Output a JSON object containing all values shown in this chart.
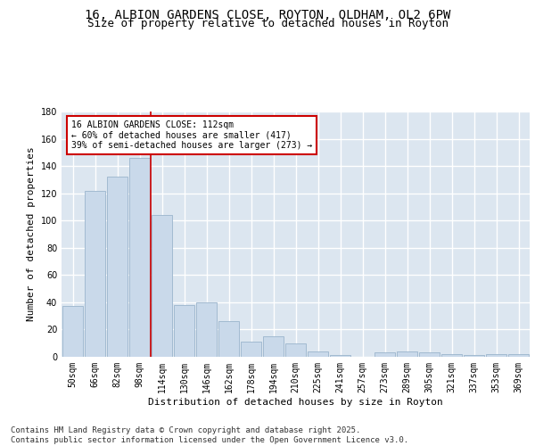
{
  "title_line1": "16, ALBION GARDENS CLOSE, ROYTON, OLDHAM, OL2 6PW",
  "title_line2": "Size of property relative to detached houses in Royton",
  "xlabel": "Distribution of detached houses by size in Royton",
  "ylabel": "Number of detached properties",
  "bar_color": "#c9d9ea",
  "bar_edgecolor": "#9ab4cc",
  "background_color": "#dce6f0",
  "grid_color": "#ffffff",
  "categories": [
    "50sqm",
    "66sqm",
    "82sqm",
    "98sqm",
    "114sqm",
    "130sqm",
    "146sqm",
    "162sqm",
    "178sqm",
    "194sqm",
    "210sqm",
    "225sqm",
    "241sqm",
    "257sqm",
    "273sqm",
    "289sqm",
    "305sqm",
    "321sqm",
    "337sqm",
    "353sqm",
    "369sqm"
  ],
  "values": [
    37,
    122,
    132,
    146,
    104,
    38,
    40,
    26,
    11,
    15,
    10,
    4,
    1,
    0,
    3,
    4,
    3,
    2,
    1,
    2,
    2
  ],
  "vline_x": 3.5,
  "annotation_line1": "16 ALBION GARDENS CLOSE: 112sqm",
  "annotation_line2": "← 60% of detached houses are smaller (417)",
  "annotation_line3": "39% of semi-detached houses are larger (273) →",
  "annotation_box_color": "#ffffff",
  "annotation_box_edgecolor": "#cc0000",
  "vline_color": "#cc0000",
  "ylim": [
    0,
    180
  ],
  "yticks": [
    0,
    20,
    40,
    60,
    80,
    100,
    120,
    140,
    160,
    180
  ],
  "footnote": "Contains HM Land Registry data © Crown copyright and database right 2025.\nContains public sector information licensed under the Open Government Licence v3.0.",
  "title_fontsize": 10,
  "subtitle_fontsize": 9,
  "axis_label_fontsize": 8,
  "tick_fontsize": 7,
  "annotation_fontsize": 7,
  "footnote_fontsize": 6.5
}
